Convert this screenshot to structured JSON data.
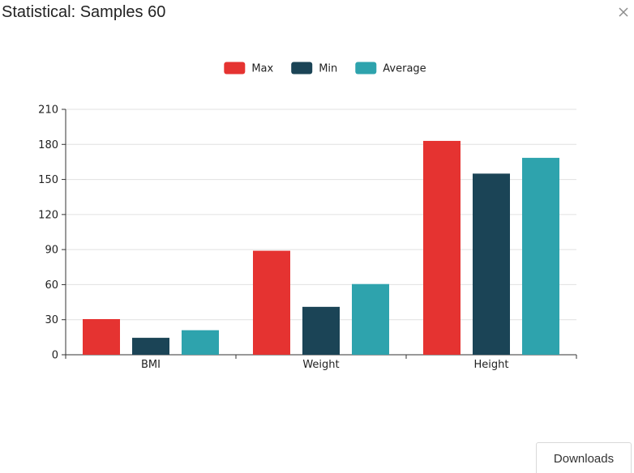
{
  "dialog": {
    "title": "Statistical: Samples 60",
    "close_icon": "close-icon",
    "download_label": "Downloads"
  },
  "chart_data": {
    "type": "bar",
    "categories": [
      "BMI",
      "Weight",
      "Height"
    ],
    "series": [
      {
        "name": "Max",
        "color": "#e53331",
        "values": [
          30.5,
          89,
          183
        ]
      },
      {
        "name": "Min",
        "color": "#1b4456",
        "values": [
          14.5,
          41,
          155
        ]
      },
      {
        "name": "Average",
        "color": "#2ea3ad",
        "values": [
          21,
          60.5,
          168.5
        ]
      }
    ],
    "ylim": [
      0,
      210
    ],
    "yticks": [
      0,
      30,
      60,
      90,
      120,
      150,
      180,
      210
    ],
    "grid": true,
    "legend_position": "top-center",
    "title": "",
    "xlabel": "",
    "ylabel": ""
  }
}
